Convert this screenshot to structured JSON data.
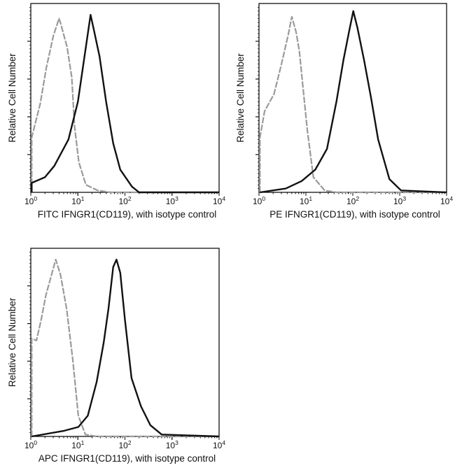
{
  "chart_data": [
    {
      "type": "line",
      "title": "",
      "xlabel": "FITC IFNGR1(CD119), with isotype control",
      "ylabel": "Relative Cell Number",
      "xscale": "log",
      "xlim_log10": [
        0,
        4
      ],
      "ylim": [
        0,
        1
      ],
      "xticks": [
        {
          "base": "10",
          "exp": "0"
        },
        {
          "base": "10",
          "exp": "1"
        },
        {
          "base": "10",
          "exp": "2"
        },
        {
          "base": "10",
          "exp": "3"
        },
        {
          "base": "10",
          "exp": "4"
        }
      ],
      "grid": false,
      "series": [
        {
          "name": "isotype control",
          "color": "#9a9a9a",
          "style": "dashed",
          "x_log10": [
            0.02,
            0.2,
            0.33,
            0.48,
            0.6,
            0.64,
            0.77,
            0.87,
            0.93,
            1.02,
            1.17,
            1.42,
            1.7,
            4
          ],
          "y": [
            0.29,
            0.47,
            0.66,
            0.83,
            0.92,
            0.89,
            0.77,
            0.61,
            0.35,
            0.16,
            0.04,
            0.01,
            0,
            0
          ]
        },
        {
          "name": "IFNGR1 (CD119)",
          "color": "#111111",
          "style": "solid",
          "x_log10": [
            0.02,
            0.3,
            0.5,
            0.8,
            1.0,
            1.17,
            1.27,
            1.34,
            1.46,
            1.6,
            1.75,
            1.9,
            2.15,
            2.3,
            4
          ],
          "y": [
            0.05,
            0.08,
            0.14,
            0.28,
            0.48,
            0.77,
            0.94,
            0.86,
            0.72,
            0.48,
            0.26,
            0.12,
            0.03,
            0,
            0
          ]
        }
      ]
    },
    {
      "type": "line",
      "title": "",
      "xlabel": "PE IFNGR1(CD119), with isotype control",
      "ylabel": "Relative Cell Number",
      "xscale": "log",
      "xlim_log10": [
        0,
        4
      ],
      "ylim": [
        0,
        1
      ],
      "xticks": [
        {
          "base": "10",
          "exp": "0"
        },
        {
          "base": "10",
          "exp": "1"
        },
        {
          "base": "10",
          "exp": "2"
        },
        {
          "base": "10",
          "exp": "3"
        },
        {
          "base": "10",
          "exp": "4"
        }
      ],
      "grid": false,
      "series": [
        {
          "name": "isotype control",
          "color": "#9a9a9a",
          "style": "dashed",
          "x_log10": [
            0.02,
            0.12,
            0.32,
            0.47,
            0.62,
            0.7,
            0.79,
            0.86,
            0.94,
            1.03,
            1.16,
            1.4,
            1.65,
            4
          ],
          "y": [
            0.29,
            0.43,
            0.52,
            0.67,
            0.83,
            0.93,
            0.85,
            0.75,
            0.55,
            0.33,
            0.08,
            0.01,
            0,
            0
          ]
        },
        {
          "name": "IFNGR1 (CD119)",
          "color": "#111111",
          "style": "solid",
          "x_log10": [
            0.02,
            0.57,
            0.91,
            1.2,
            1.45,
            1.65,
            1.8,
            1.92,
            2.01,
            2.1,
            2.24,
            2.39,
            2.54,
            2.78,
            3.03,
            4
          ],
          "y": [
            0,
            0.02,
            0.06,
            0.12,
            0.23,
            0.48,
            0.7,
            0.85,
            0.96,
            0.87,
            0.7,
            0.5,
            0.28,
            0.07,
            0.01,
            0
          ]
        }
      ]
    },
    {
      "type": "line",
      "title": "",
      "xlabel": "APC IFNGR1(CD119), with isotype control",
      "ylabel": "Relative Cell Number",
      "xscale": "log",
      "xlim_log10": [
        0,
        4
      ],
      "ylim": [
        0,
        1
      ],
      "xticks": [
        {
          "base": "10",
          "exp": "0"
        },
        {
          "base": "10",
          "exp": "1"
        },
        {
          "base": "10",
          "exp": "2"
        },
        {
          "base": "10",
          "exp": "3"
        },
        {
          "base": "10",
          "exp": "4"
        }
      ],
      "grid": false,
      "series": [
        {
          "name": "isotype control",
          "color": "#9a9a9a",
          "style": "dashed",
          "x_log10": [
            0.02,
            0.12,
            0.22,
            0.32,
            0.42,
            0.53,
            0.63,
            0.76,
            0.89,
            1.01,
            1.16,
            1.4,
            4
          ],
          "y": [
            0.52,
            0.51,
            0.62,
            0.75,
            0.84,
            0.94,
            0.86,
            0.68,
            0.41,
            0.11,
            0.01,
            0,
            0
          ]
        },
        {
          "name": "IFNGR1 (CD119)",
          "color": "#111111",
          "style": "solid",
          "x_log10": [
            0.02,
            0.71,
            1.01,
            1.21,
            1.4,
            1.55,
            1.65,
            1.75,
            1.82,
            1.9,
            2.0,
            2.14,
            2.34,
            2.54,
            2.78,
            4
          ],
          "y": [
            0,
            0.03,
            0.05,
            0.11,
            0.29,
            0.5,
            0.68,
            0.9,
            0.94,
            0.87,
            0.62,
            0.31,
            0.16,
            0.06,
            0.01,
            0
          ]
        }
      ]
    }
  ]
}
